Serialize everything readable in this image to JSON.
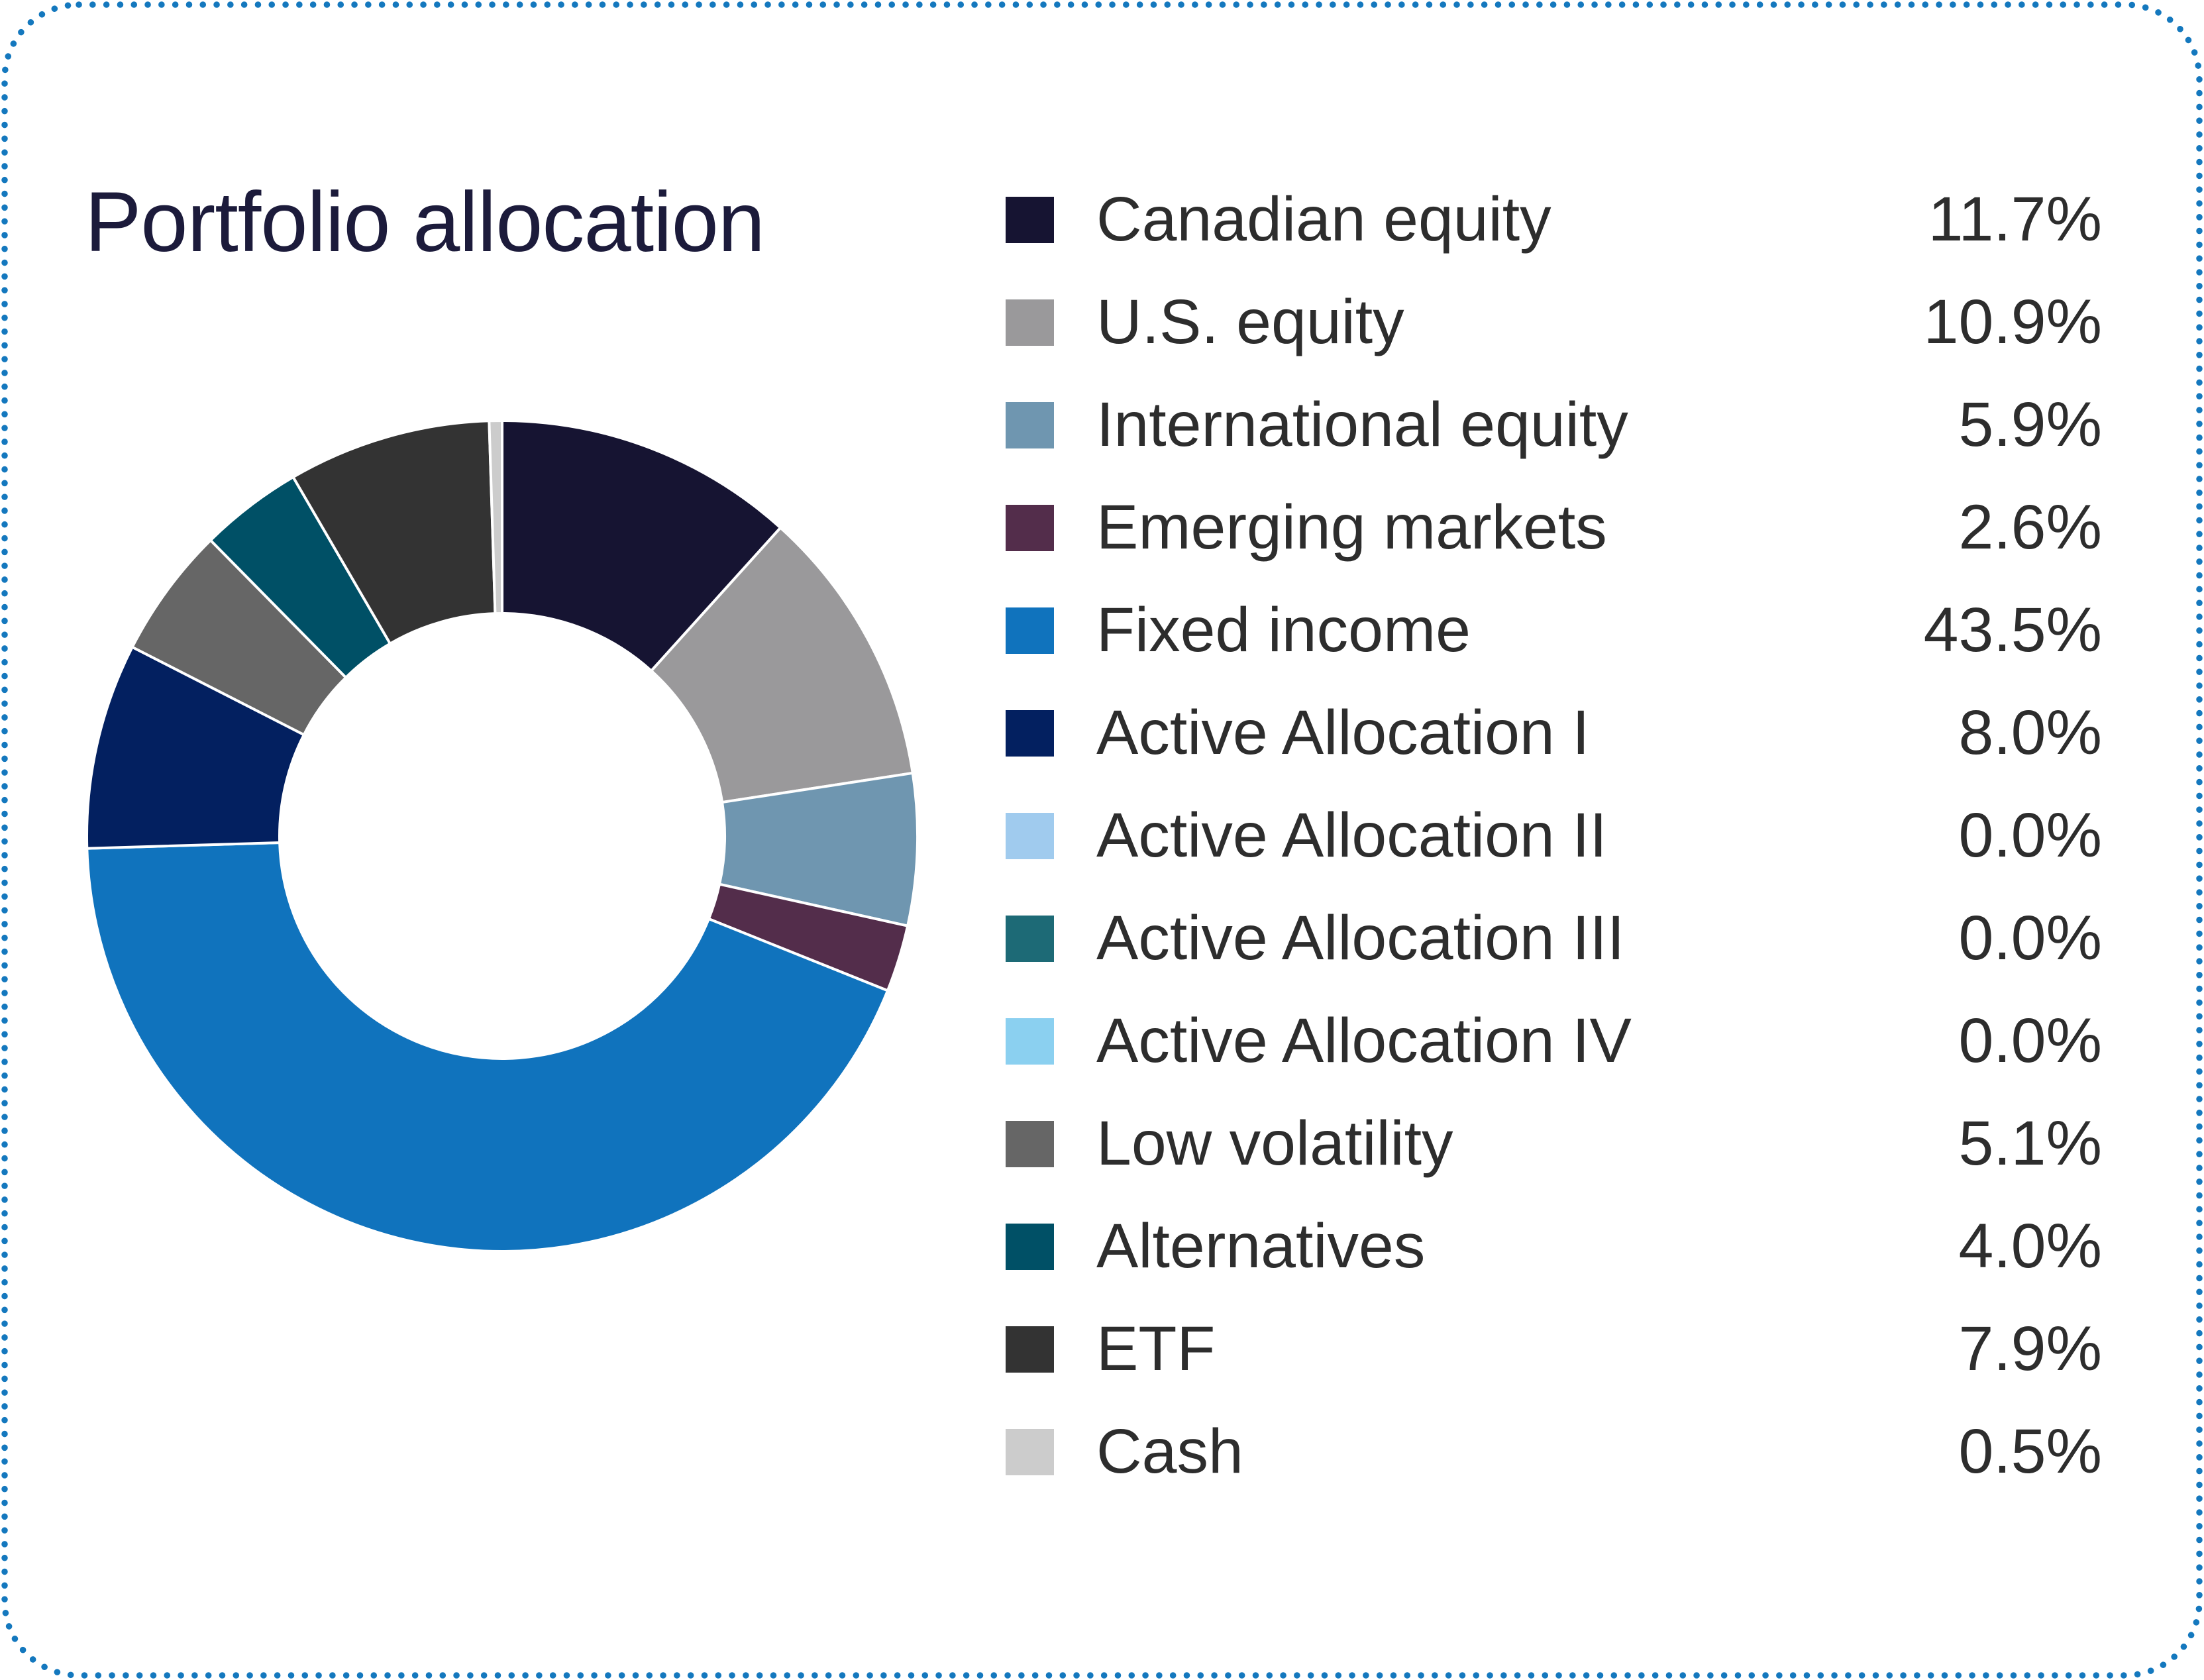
{
  "card": {
    "title": "Portfolio allocation",
    "background_color": "#ffffff",
    "border_color": "#1478be",
    "title_color": "#1c1b3b",
    "text_color": "#2d2d2d"
  },
  "legend": {
    "items": [
      {
        "label": "Canadian equity",
        "value": "11.7%",
        "color": "#161432"
      },
      {
        "label": "U.S. equity",
        "value": "10.9%",
        "color": "#9a999b"
      },
      {
        "label": "International equity",
        "value": "5.9%",
        "color": "#6f96b0"
      },
      {
        "label": "Emerging markets",
        "value": "2.6%",
        "color": "#532d4b"
      },
      {
        "label": "Fixed income",
        "value": "43.5%",
        "color": "#1073bd"
      },
      {
        "label": "Active Allocation I",
        "value": "8.0%",
        "color": "#032060"
      },
      {
        "label": "Active Allocation II",
        "value": "0.0%",
        "color": "#a0cbee"
      },
      {
        "label": "Active Allocation III",
        "value": "0.0%",
        "color": "#1d6a76"
      },
      {
        "label": "Active Allocation IV",
        "value": "0.0%",
        "color": "#8bd0f0"
      },
      {
        "label": "Low volatility",
        "value": "5.1%",
        "color": "#666666"
      },
      {
        "label": "Alternatives",
        "value": "4.0%",
        "color": "#005066"
      },
      {
        "label": "ETF",
        "value": "7.9%",
        "color": "#333333"
      },
      {
        "label": "Cash",
        "value": "0.5%",
        "color": "#cccccc"
      }
    ]
  },
  "chart_data": {
    "type": "pie",
    "subtype": "donut",
    "title": "Portfolio allocation",
    "categories": [
      "Canadian equity",
      "U.S. equity",
      "International equity",
      "Emerging markets",
      "Fixed income",
      "Active Allocation I",
      "Active Allocation II",
      "Active Allocation III",
      "Active Allocation IV",
      "Low volatility",
      "Alternatives",
      "ETF",
      "Cash"
    ],
    "values": [
      11.7,
      10.9,
      5.9,
      2.6,
      43.5,
      8.0,
      0.0,
      0.0,
      0.0,
      5.1,
      4.0,
      7.9,
      0.5
    ],
    "colors": [
      "#161432",
      "#9a999b",
      "#6f96b0",
      "#532d4b",
      "#1073bd",
      "#032060",
      "#a0cbee",
      "#1d6a76",
      "#8bd0f0",
      "#666666",
      "#005066",
      "#333333",
      "#cccccc"
    ],
    "unit": "%",
    "start_angle": "top",
    "direction": "clockwise",
    "inner_radius_ratio": 0.536,
    "slice_gap_color": "#ffffff",
    "legend_position": "right",
    "data_labels": false
  }
}
